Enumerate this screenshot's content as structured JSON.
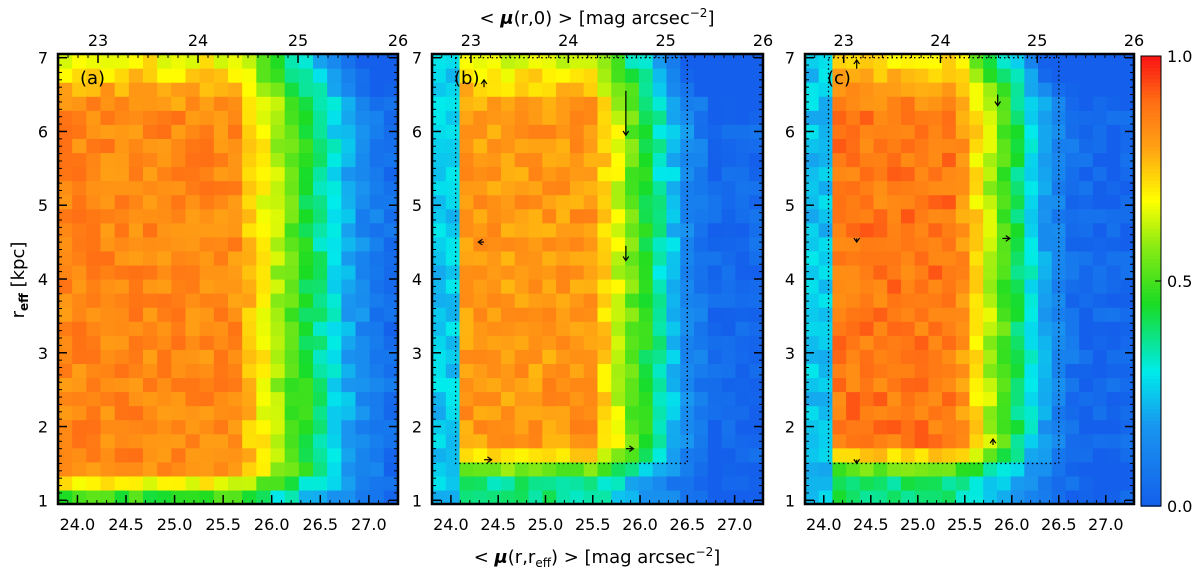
{
  "chart_data": {
    "type": "heatmap",
    "colormap": "rainbow (blue-cyan-green-yellow-red)",
    "colorbar": {
      "range": [
        0.0,
        1.0
      ],
      "tick_labels": [
        "0.0",
        "0.5",
        "1.0"
      ]
    },
    "x_axis": {
      "label_prefix": "< ",
      "label_symbol": "μ",
      "label_arg": "(r,r",
      "label_sub": "eff",
      "label_suffix": ") > [mag arcsec",
      "label_exp": "−2",
      "label_close": "]",
      "range": [
        23.8,
        27.3
      ],
      "tick_values": [
        24.0,
        24.5,
        25.0,
        25.5,
        26.0,
        26.5,
        27.0
      ],
      "tick_labels": [
        "24.0",
        "24.5",
        "25.0",
        "25.5",
        "26.0",
        "26.5",
        "27.0"
      ]
    },
    "top_axis": {
      "label_prefix": "< ",
      "label_symbol": "μ",
      "label_arg": "(r,0) > [mag arcsec",
      "label_exp": "−2",
      "label_close": "]",
      "range": [
        22.6,
        26.0
      ],
      "tick_values": [
        23,
        24,
        25,
        26
      ],
      "tick_labels": [
        "23",
        "24",
        "25",
        "26"
      ]
    },
    "y_axis": {
      "label_main": "r",
      "label_sub": "eff",
      "label_suffix": " [kpc]",
      "range": [
        0.95,
        7.05
      ],
      "tick_values": [
        1,
        2,
        3,
        4,
        5,
        6,
        7
      ],
      "tick_labels": [
        "1",
        "2",
        "3",
        "4",
        "5",
        "6",
        "7"
      ]
    },
    "panels": [
      {
        "label": "(a)",
        "dotted_box": null,
        "arrows": [],
        "field": {
          "mu_peak": 25.0,
          "plateau": 0.85,
          "falloff_start": 25.6,
          "falloff_end": 26.9,
          "low_r_cut": 1.15
        }
      },
      {
        "label": "(b)",
        "dotted_box": {
          "x": [
            24.05,
            26.5
          ],
          "y": [
            1.5,
            7.0
          ]
        },
        "arrows": [
          {
            "x": 25.85,
            "y": 6.55,
            "dy": -0.6
          },
          {
            "x": 25.85,
            "y": 4.45,
            "dy": -0.2
          },
          {
            "x": 24.35,
            "y": 4.5,
            "dx": -0.06
          },
          {
            "x": 24.35,
            "y": 6.6,
            "dy": 0.1
          },
          {
            "x": 24.35,
            "y": 1.55,
            "dx": 0.08
          },
          {
            "x": 25.85,
            "y": 1.7,
            "dx": 0.08
          }
        ],
        "field": {
          "mu_peak": 24.9,
          "plateau": 0.82,
          "falloff_start": 25.5,
          "falloff_end": 26.5,
          "low_r_cut": 1.45
        }
      },
      {
        "label": "(c)",
        "dotted_box": {
          "x": [
            24.05,
            26.5
          ],
          "y": [
            1.5,
            7.0
          ]
        },
        "arrows": [
          {
            "x": 25.85,
            "y": 6.5,
            "dy": -0.15
          },
          {
            "x": 25.9,
            "y": 4.55,
            "dx": 0.08
          },
          {
            "x": 24.35,
            "y": 4.55,
            "dy": -0.05
          },
          {
            "x": 24.35,
            "y": 6.85,
            "dy": 0.12
          },
          {
            "x": 24.35,
            "y": 1.55,
            "dy": -0.05
          },
          {
            "x": 25.8,
            "y": 1.75,
            "dy": 0.08
          }
        ],
        "field": {
          "mu_peak": 24.8,
          "plateau": 0.88,
          "falloff_start": 25.4,
          "falloff_end": 26.4,
          "low_r_cut": 1.5
        }
      }
    ]
  }
}
